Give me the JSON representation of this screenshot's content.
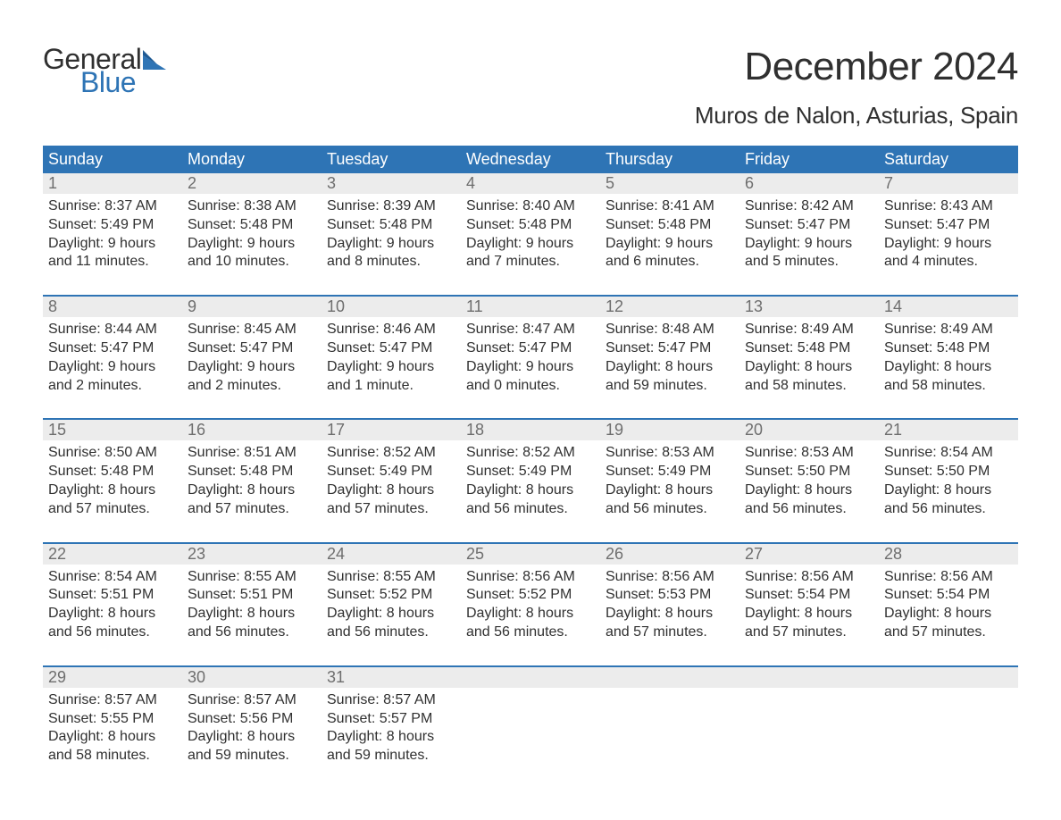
{
  "brand": {
    "general": "General",
    "blue": "Blue"
  },
  "title": "December 2024",
  "subtitle": "Muros de Nalon, Asturias, Spain",
  "colors": {
    "header_bg": "#2e74b5",
    "header_text": "#ffffff",
    "daynum_bg": "#ececec",
    "daynum_text": "#6e6e6e",
    "body_text": "#303030",
    "divider": "#2e74b5",
    "logo_blue": "#2e74b5",
    "logo_dark": "#303030",
    "background": "#ffffff"
  },
  "typography": {
    "title_fontsize": 44,
    "subtitle_fontsize": 26,
    "weekday_fontsize": 18,
    "daynum_fontsize": 18,
    "cell_fontsize": 16,
    "logo_fontsize": 32
  },
  "weekdays": [
    "Sunday",
    "Monday",
    "Tuesday",
    "Wednesday",
    "Thursday",
    "Friday",
    "Saturday"
  ],
  "weeks": [
    [
      {
        "day": "1",
        "sunrise": "Sunrise: 8:37 AM",
        "sunset": "Sunset: 5:49 PM",
        "dl1": "Daylight: 9 hours",
        "dl2": "and 11 minutes."
      },
      {
        "day": "2",
        "sunrise": "Sunrise: 8:38 AM",
        "sunset": "Sunset: 5:48 PM",
        "dl1": "Daylight: 9 hours",
        "dl2": "and 10 minutes."
      },
      {
        "day": "3",
        "sunrise": "Sunrise: 8:39 AM",
        "sunset": "Sunset: 5:48 PM",
        "dl1": "Daylight: 9 hours",
        "dl2": "and 8 minutes."
      },
      {
        "day": "4",
        "sunrise": "Sunrise: 8:40 AM",
        "sunset": "Sunset: 5:48 PM",
        "dl1": "Daylight: 9 hours",
        "dl2": "and 7 minutes."
      },
      {
        "day": "5",
        "sunrise": "Sunrise: 8:41 AM",
        "sunset": "Sunset: 5:48 PM",
        "dl1": "Daylight: 9 hours",
        "dl2": "and 6 minutes."
      },
      {
        "day": "6",
        "sunrise": "Sunrise: 8:42 AM",
        "sunset": "Sunset: 5:47 PM",
        "dl1": "Daylight: 9 hours",
        "dl2": "and 5 minutes."
      },
      {
        "day": "7",
        "sunrise": "Sunrise: 8:43 AM",
        "sunset": "Sunset: 5:47 PM",
        "dl1": "Daylight: 9 hours",
        "dl2": "and 4 minutes."
      }
    ],
    [
      {
        "day": "8",
        "sunrise": "Sunrise: 8:44 AM",
        "sunset": "Sunset: 5:47 PM",
        "dl1": "Daylight: 9 hours",
        "dl2": "and 2 minutes."
      },
      {
        "day": "9",
        "sunrise": "Sunrise: 8:45 AM",
        "sunset": "Sunset: 5:47 PM",
        "dl1": "Daylight: 9 hours",
        "dl2": "and 2 minutes."
      },
      {
        "day": "10",
        "sunrise": "Sunrise: 8:46 AM",
        "sunset": "Sunset: 5:47 PM",
        "dl1": "Daylight: 9 hours",
        "dl2": "and 1 minute."
      },
      {
        "day": "11",
        "sunrise": "Sunrise: 8:47 AM",
        "sunset": "Sunset: 5:47 PM",
        "dl1": "Daylight: 9 hours",
        "dl2": "and 0 minutes."
      },
      {
        "day": "12",
        "sunrise": "Sunrise: 8:48 AM",
        "sunset": "Sunset: 5:47 PM",
        "dl1": "Daylight: 8 hours",
        "dl2": "and 59 minutes."
      },
      {
        "day": "13",
        "sunrise": "Sunrise: 8:49 AM",
        "sunset": "Sunset: 5:48 PM",
        "dl1": "Daylight: 8 hours",
        "dl2": "and 58 minutes."
      },
      {
        "day": "14",
        "sunrise": "Sunrise: 8:49 AM",
        "sunset": "Sunset: 5:48 PM",
        "dl1": "Daylight: 8 hours",
        "dl2": "and 58 minutes."
      }
    ],
    [
      {
        "day": "15",
        "sunrise": "Sunrise: 8:50 AM",
        "sunset": "Sunset: 5:48 PM",
        "dl1": "Daylight: 8 hours",
        "dl2": "and 57 minutes."
      },
      {
        "day": "16",
        "sunrise": "Sunrise: 8:51 AM",
        "sunset": "Sunset: 5:48 PM",
        "dl1": "Daylight: 8 hours",
        "dl2": "and 57 minutes."
      },
      {
        "day": "17",
        "sunrise": "Sunrise: 8:52 AM",
        "sunset": "Sunset: 5:49 PM",
        "dl1": "Daylight: 8 hours",
        "dl2": "and 57 minutes."
      },
      {
        "day": "18",
        "sunrise": "Sunrise: 8:52 AM",
        "sunset": "Sunset: 5:49 PM",
        "dl1": "Daylight: 8 hours",
        "dl2": "and 56 minutes."
      },
      {
        "day": "19",
        "sunrise": "Sunrise: 8:53 AM",
        "sunset": "Sunset: 5:49 PM",
        "dl1": "Daylight: 8 hours",
        "dl2": "and 56 minutes."
      },
      {
        "day": "20",
        "sunrise": "Sunrise: 8:53 AM",
        "sunset": "Sunset: 5:50 PM",
        "dl1": "Daylight: 8 hours",
        "dl2": "and 56 minutes."
      },
      {
        "day": "21",
        "sunrise": "Sunrise: 8:54 AM",
        "sunset": "Sunset: 5:50 PM",
        "dl1": "Daylight: 8 hours",
        "dl2": "and 56 minutes."
      }
    ],
    [
      {
        "day": "22",
        "sunrise": "Sunrise: 8:54 AM",
        "sunset": "Sunset: 5:51 PM",
        "dl1": "Daylight: 8 hours",
        "dl2": "and 56 minutes."
      },
      {
        "day": "23",
        "sunrise": "Sunrise: 8:55 AM",
        "sunset": "Sunset: 5:51 PM",
        "dl1": "Daylight: 8 hours",
        "dl2": "and 56 minutes."
      },
      {
        "day": "24",
        "sunrise": "Sunrise: 8:55 AM",
        "sunset": "Sunset: 5:52 PM",
        "dl1": "Daylight: 8 hours",
        "dl2": "and 56 minutes."
      },
      {
        "day": "25",
        "sunrise": "Sunrise: 8:56 AM",
        "sunset": "Sunset: 5:52 PM",
        "dl1": "Daylight: 8 hours",
        "dl2": "and 56 minutes."
      },
      {
        "day": "26",
        "sunrise": "Sunrise: 8:56 AM",
        "sunset": "Sunset: 5:53 PM",
        "dl1": "Daylight: 8 hours",
        "dl2": "and 57 minutes."
      },
      {
        "day": "27",
        "sunrise": "Sunrise: 8:56 AM",
        "sunset": "Sunset: 5:54 PM",
        "dl1": "Daylight: 8 hours",
        "dl2": "and 57 minutes."
      },
      {
        "day": "28",
        "sunrise": "Sunrise: 8:56 AM",
        "sunset": "Sunset: 5:54 PM",
        "dl1": "Daylight: 8 hours",
        "dl2": "and 57 minutes."
      }
    ],
    [
      {
        "day": "29",
        "sunrise": "Sunrise: 8:57 AM",
        "sunset": "Sunset: 5:55 PM",
        "dl1": "Daylight: 8 hours",
        "dl2": "and 58 minutes."
      },
      {
        "day": "30",
        "sunrise": "Sunrise: 8:57 AM",
        "sunset": "Sunset: 5:56 PM",
        "dl1": "Daylight: 8 hours",
        "dl2": "and 59 minutes."
      },
      {
        "day": "31",
        "sunrise": "Sunrise: 8:57 AM",
        "sunset": "Sunset: 5:57 PM",
        "dl1": "Daylight: 8 hours",
        "dl2": "and 59 minutes."
      },
      {
        "day": "",
        "sunrise": "",
        "sunset": "",
        "dl1": "",
        "dl2": ""
      },
      {
        "day": "",
        "sunrise": "",
        "sunset": "",
        "dl1": "",
        "dl2": ""
      },
      {
        "day": "",
        "sunrise": "",
        "sunset": "",
        "dl1": "",
        "dl2": ""
      },
      {
        "day": "",
        "sunrise": "",
        "sunset": "",
        "dl1": "",
        "dl2": ""
      }
    ]
  ]
}
